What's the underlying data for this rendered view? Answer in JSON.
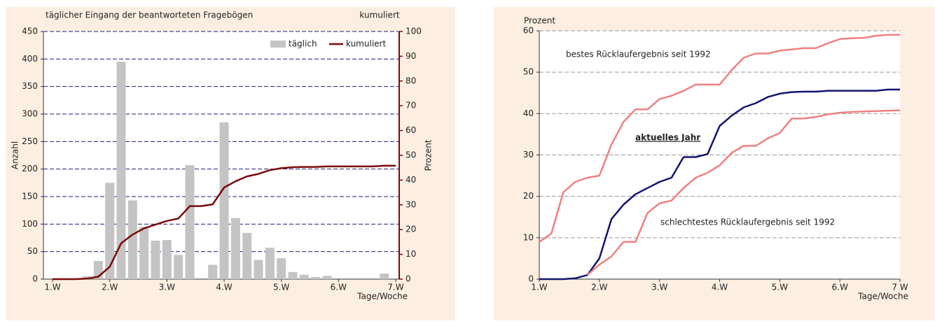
{
  "chart_data": [
    {
      "type": "combo",
      "title": "täglicher Eingang der beantworteten Fragebögen",
      "y2title": "kumuliert",
      "ylabel": "Anzahl",
      "y2label": "Prozent",
      "xlabel": "Tage/Woche",
      "xlim": [
        1,
        7
      ],
      "xticks": [
        {
          "value": 1,
          "label": "1.W"
        },
        {
          "value": 2,
          "label": "2.W"
        },
        {
          "value": 3,
          "label": "3.W"
        },
        {
          "value": 4,
          "label": "4.W"
        },
        {
          "value": 5,
          "label": "5.W"
        },
        {
          "value": 6,
          "label": "6.W"
        },
        {
          "value": 7,
          "label": "7.W"
        }
      ],
      "ylim": [
        0,
        450
      ],
      "yticks": [
        0,
        50,
        100,
        150,
        200,
        250,
        300,
        350,
        400,
        450
      ],
      "y2lim": [
        0,
        100
      ],
      "y2ticks": [
        0,
        10,
        20,
        30,
        40,
        50,
        60,
        70,
        80,
        90,
        100
      ],
      "grid": true,
      "grid_color": "#1f1f7a",
      "legend": "top-right",
      "series": [
        {
          "name": "täglich",
          "type": "bar",
          "color": "#c4c4c4",
          "x": [
            1.6,
            1.8,
            2.0,
            2.2,
            2.4,
            2.6,
            2.8,
            3.0,
            3.2,
            3.4,
            3.8,
            4.0,
            4.2,
            4.4,
            4.6,
            4.8,
            5.0,
            5.2,
            5.4,
            5.6,
            5.8,
            6.8
          ],
          "values": [
            5,
            33,
            175,
            395,
            143,
            95,
            70,
            71,
            44,
            207,
            26,
            285,
            111,
            84,
            35,
            57,
            38,
            13,
            8,
            4,
            6,
            10
          ]
        },
        {
          "name": "kumuliert",
          "type": "line",
          "axis": "y2",
          "color": "#7a0a0a",
          "x": [
            1.0,
            1.2,
            1.4,
            1.6,
            1.8,
            2.0,
            2.2,
            2.4,
            2.6,
            2.8,
            3.0,
            3.2,
            3.4,
            3.6,
            3.8,
            4.0,
            4.2,
            4.4,
            4.6,
            4.8,
            5.0,
            5.2,
            5.4,
            5.6,
            5.8,
            6.0,
            6.2,
            6.4,
            6.6,
            6.8,
            7.0
          ],
          "values": [
            0,
            0,
            0,
            0.2,
            1,
            5,
            14.5,
            18,
            20.5,
            22,
            23.5,
            24.5,
            29.5,
            29.5,
            30.2,
            37,
            39.5,
            41.5,
            42.5,
            44,
            44.8,
            45.2,
            45.3,
            45.3,
            45.5,
            45.5,
            45.5,
            45.5,
            45.5,
            45.8,
            45.8
          ]
        }
      ]
    },
    {
      "type": "line",
      "ylabel": "Prozent",
      "xlabel": "Tage/Woche",
      "xlim": [
        1,
        7
      ],
      "xticks": [
        {
          "value": 1,
          "label": "1.W"
        },
        {
          "value": 2,
          "label": "2.W"
        },
        {
          "value": 3,
          "label": "3.W"
        },
        {
          "value": 4,
          "label": "4.W"
        },
        {
          "value": 5,
          "label": "5.W"
        },
        {
          "value": 6,
          "label": "6.W"
        },
        {
          "value": 7,
          "label": "7 W"
        }
      ],
      "ylim": [
        0,
        60
      ],
      "yticks": [
        0,
        10,
        20,
        30,
        40,
        50,
        60
      ],
      "grid": true,
      "grid_color": "#9a9a9a",
      "x": [
        1.0,
        1.2,
        1.4,
        1.6,
        1.8,
        2.0,
        2.2,
        2.4,
        2.6,
        2.8,
        3.0,
        3.2,
        3.4,
        3.6,
        3.8,
        4.0,
        4.2,
        4.4,
        4.6,
        4.8,
        5.0,
        5.2,
        5.4,
        5.6,
        5.8,
        6.0,
        6.2,
        6.4,
        6.6,
        6.8,
        7.0
      ],
      "series": [
        {
          "name": "bestes Rücklaufergebnis seit 1992",
          "color": "#f08080",
          "values": [
            9,
            11,
            21,
            23.5,
            24.5,
            25,
            32.5,
            38,
            41,
            41,
            43.5,
            44.3,
            45.5,
            47,
            47,
            47,
            50.5,
            53.5,
            54.5,
            54.5,
            55.2,
            55.5,
            55.8,
            55.8,
            57,
            58,
            58.2,
            58.3,
            58.8,
            59,
            59
          ]
        },
        {
          "name": "aktuelles Jahr",
          "color": "#14146e",
          "values": [
            0,
            0,
            0,
            0.2,
            1,
            5,
            14.5,
            18,
            20.5,
            22,
            23.5,
            24.5,
            29.5,
            29.5,
            30.2,
            37,
            39.5,
            41.5,
            42.5,
            44,
            44.8,
            45.2,
            45.3,
            45.3,
            45.5,
            45.5,
            45.5,
            45.5,
            45.5,
            45.8,
            45.8
          ]
        },
        {
          "name": "schlechtestes Rücklaufergebnis seit 1992",
          "color": "#f08080",
          "values": [
            null,
            null,
            null,
            null,
            1,
            3.5,
            5.5,
            9,
            9,
            16,
            18.3,
            19,
            22,
            24.5,
            25.7,
            27.5,
            30.5,
            32.2,
            32.2,
            34,
            35.3,
            38.8,
            38.8,
            39.2,
            39.8,
            40.2,
            40.4,
            40.5,
            40.6,
            40.7,
            40.8
          ]
        }
      ]
    }
  ]
}
